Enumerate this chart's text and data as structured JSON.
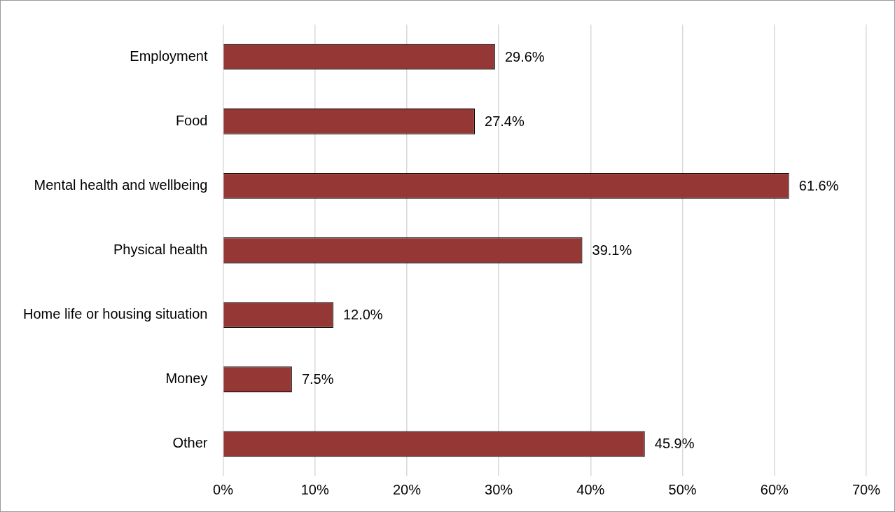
{
  "chart_data": {
    "type": "bar",
    "orientation": "horizontal",
    "categories": [
      "Employment",
      "Food",
      "Mental health and wellbeing",
      "Physical health",
      "Home life or housing situation",
      "Money",
      "Other"
    ],
    "values": [
      29.6,
      27.4,
      61.6,
      39.1,
      12.0,
      7.5,
      45.9
    ],
    "value_labels": [
      "29.6%",
      "27.4%",
      "61.6%",
      "39.1%",
      "12.0%",
      "7.5%",
      "45.9%"
    ],
    "color": "#953735",
    "xlim": [
      0,
      70
    ],
    "xticks": [
      {
        "value": 0,
        "label": "0%"
      },
      {
        "value": 10,
        "label": "10%"
      },
      {
        "value": 20,
        "label": "20%"
      },
      {
        "value": 30,
        "label": "30%"
      },
      {
        "value": 40,
        "label": "40%"
      },
      {
        "value": 50,
        "label": "50%"
      },
      {
        "value": 60,
        "label": "60%"
      },
      {
        "value": 70,
        "label": "70%"
      }
    ],
    "grid": "x",
    "legend": false
  }
}
